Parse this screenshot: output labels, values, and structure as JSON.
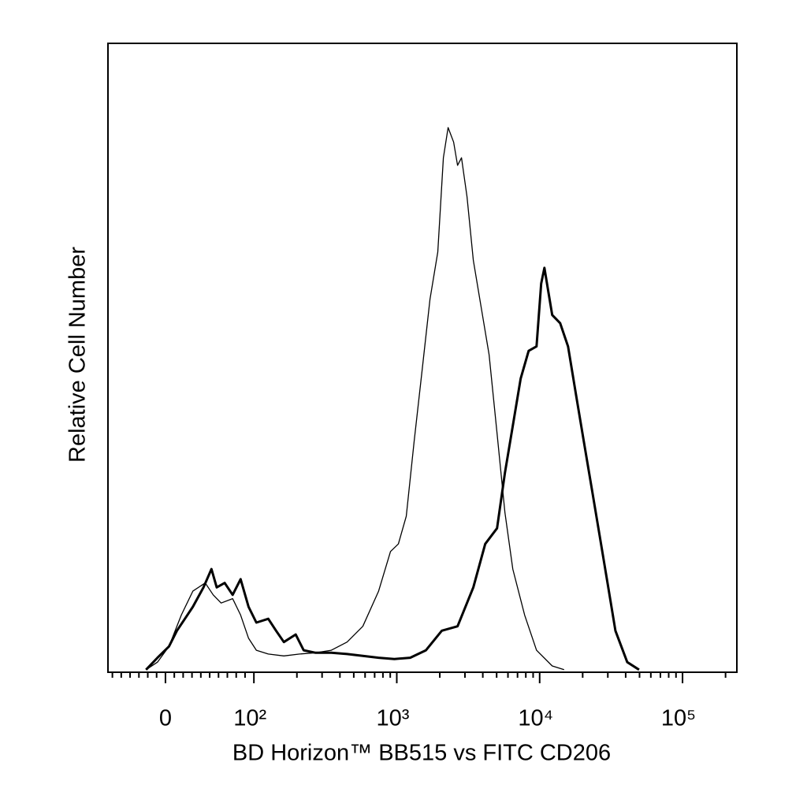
{
  "chart_data": {
    "type": "histogram-overlay",
    "xlabel": "BD Horizon™ BB515 vs FITC CD206",
    "ylabel": "Relative Cell Number",
    "xscale": "biexponential",
    "xlim": [
      -65,
      240000
    ],
    "ylim": [
      0,
      100
    ],
    "xticks": [
      0,
      {
        "value": 100,
        "label": "10²"
      },
      {
        "value": 1000,
        "label": "10³"
      },
      {
        "value": 10000,
        "label": "10⁴"
      },
      {
        "value": 100000,
        "label": "10⁵"
      }
    ],
    "xminorticks": [
      -60,
      -50,
      -40,
      -30,
      -20,
      -10,
      10,
      20,
      30,
      40,
      50,
      60,
      70,
      80,
      90,
      200,
      300,
      400,
      500,
      600,
      700,
      800,
      900,
      2000,
      3000,
      4000,
      5000,
      6000,
      7000,
      8000,
      9000,
      20000,
      30000,
      40000,
      50000,
      60000,
      70000,
      80000,
      90000,
      200000
    ],
    "series": [
      {
        "color": "#000000",
        "line_width": 1.3,
        "x": [
          -22,
          -9,
          4,
          18,
          31,
          45,
          54,
          63,
          76,
          85,
          94,
          104,
          126,
          162,
          209,
          270,
          348,
          449,
          579,
          746,
          904,
          1026,
          1165,
          1323,
          1503,
          1707,
          1937,
          2118,
          2287,
          2500,
          2663,
          2837,
          3102,
          3434,
          3899,
          4429,
          5030,
          5715,
          6491,
          7850,
          9510,
          12250,
          14830
        ],
        "values": [
          0.4,
          1.6,
          4.1,
          9.1,
          12.9,
          14.2,
          12.3,
          11.0,
          11.7,
          9.1,
          5.4,
          3.5,
          2.9,
          2.6,
          2.9,
          3.1,
          3.5,
          4.8,
          7.3,
          12.9,
          19.2,
          20.4,
          24.8,
          36.7,
          48.0,
          59.3,
          66.8,
          81.8,
          86.6,
          84.3,
          80.6,
          81.8,
          75.6,
          65.5,
          58.0,
          50.5,
          38.0,
          25.4,
          16.4,
          9.1,
          3.5,
          1.0,
          0.4
        ]
      },
      {
        "color": "#000000",
        "line_width": 3,
        "x": [
          -22,
          -9,
          4,
          13,
          22,
          31,
          43,
          52,
          58,
          67,
          76,
          85,
          94,
          104,
          126,
          143,
          162,
          196,
          223,
          270,
          348,
          449,
          579,
          746,
          962,
          1241,
          1600,
          2065,
          2663,
          3434,
          4158,
          5030,
          5715,
          6491,
          7369,
          8370,
          9510,
          10250,
          10790,
          11510,
          12250,
          13920,
          15810,
          17950,
          20380,
          23170,
          26300,
          29860,
          33900,
          41020,
          49650
        ],
        "values": [
          0.4,
          2.3,
          4.1,
          6.6,
          8.5,
          10.4,
          13.5,
          16.4,
          13.5,
          14.2,
          12.3,
          14.8,
          10.4,
          7.9,
          8.5,
          6.6,
          4.8,
          6.0,
          3.5,
          3.1,
          3.1,
          2.9,
          2.6,
          2.3,
          2.1,
          2.3,
          3.5,
          6.6,
          7.3,
          13.5,
          20.4,
          22.9,
          31.7,
          39.2,
          46.7,
          51.1,
          51.8,
          61.8,
          64.3,
          60.5,
          56.8,
          55.5,
          51.8,
          44.2,
          36.7,
          29.2,
          21.7,
          14.2,
          6.6,
          1.6,
          0.4
        ]
      }
    ]
  }
}
